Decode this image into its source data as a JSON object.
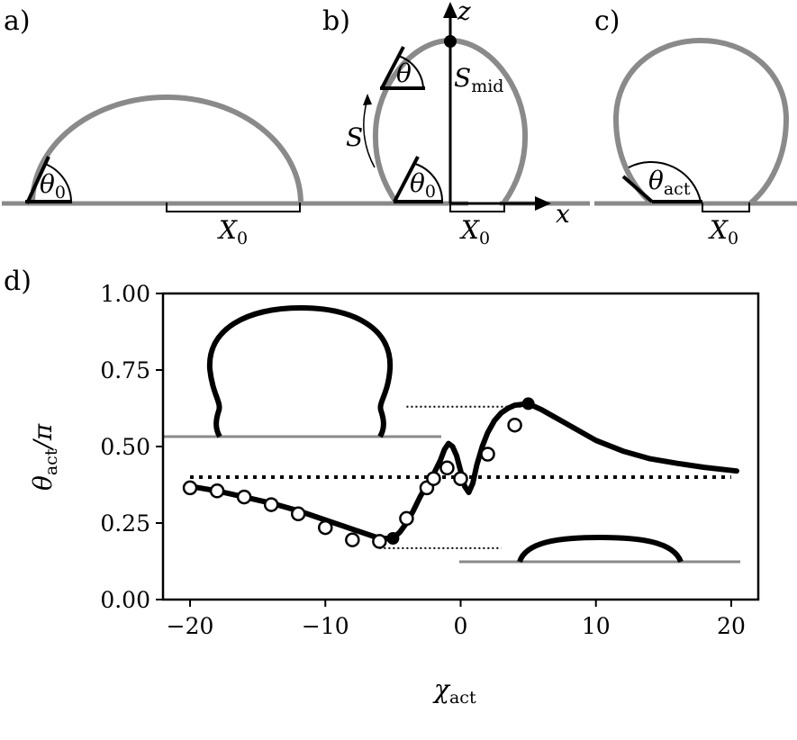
{
  "panels": {
    "a": {
      "label": "a)",
      "theta0": {
        "base": "θ",
        "sub": "0"
      },
      "x0": {
        "base": "X",
        "sub": "0"
      }
    },
    "b": {
      "label": "b)",
      "z": "z",
      "x": "x",
      "s": "S",
      "smid": {
        "base": "S",
        "sub": "mid"
      },
      "theta": "θ",
      "theta0": {
        "base": "θ",
        "sub": "0"
      },
      "x0": {
        "base": "X",
        "sub": "0"
      }
    },
    "c": {
      "label": "c)",
      "theta_act": {
        "base": "θ",
        "sub": "act"
      },
      "x0": {
        "base": "X",
        "sub": "0"
      }
    },
    "d": {
      "label": "d)"
    }
  },
  "chart_data": {
    "type": "line",
    "xlabel": {
      "base": "χ",
      "sub": "act"
    },
    "ylabel": {
      "base": "θ",
      "sub": "act",
      "tail": "/π"
    },
    "xlim": [
      -22,
      22
    ],
    "ylim": [
      0,
      1
    ],
    "xticks": [
      -20,
      -10,
      0,
      10,
      20
    ],
    "xtick_labels": [
      "−20",
      "−10",
      "0",
      "10",
      "20"
    ],
    "yticks": [
      0,
      0.25,
      0.5,
      0.75,
      1
    ],
    "ytick_labels": [
      "0.00",
      "0.25",
      "0.50",
      "0.75",
      "1.00"
    ],
    "grid": false,
    "series": [
      {
        "style": "solid",
        "x": [
          -20,
          -18,
          -16,
          -14,
          -12,
          -10,
          -8,
          -6,
          -5,
          -4.5,
          -4,
          -3.5,
          -3,
          -2.5,
          -2,
          -1.5,
          -1.2,
          -0.9,
          -0.6,
          -0.3,
          0,
          0.3,
          0.6,
          0.9,
          1.2,
          1.6,
          2,
          2.5,
          3,
          3.5,
          4,
          5,
          6,
          7,
          8,
          10,
          12,
          14,
          16,
          18,
          20.4
        ],
        "y": [
          0.37,
          0.355,
          0.335,
          0.315,
          0.29,
          0.26,
          0.23,
          0.2,
          0.2,
          0.22,
          0.25,
          0.29,
          0.335,
          0.375,
          0.41,
          0.455,
          0.49,
          0.51,
          0.5,
          0.47,
          0.42,
          0.37,
          0.35,
          0.38,
          0.44,
          0.5,
          0.545,
          0.585,
          0.61,
          0.625,
          0.635,
          0.64,
          0.62,
          0.595,
          0.57,
          0.52,
          0.485,
          0.46,
          0.445,
          0.432,
          0.42
        ]
      },
      {
        "style": "markers",
        "x": [
          -20,
          -18,
          -16,
          -14,
          -12,
          -10,
          -8,
          -6,
          -4,
          -2.5,
          -2,
          -1,
          0,
          2,
          4
        ],
        "y": [
          0.365,
          0.355,
          0.335,
          0.31,
          0.28,
          0.235,
          0.195,
          0.19,
          0.265,
          0.365,
          0.395,
          0.43,
          0.395,
          0.475,
          0.57
        ]
      }
    ],
    "reference_lines": [
      {
        "style": "dotted",
        "x": [
          -20,
          20
        ],
        "y": 0.4
      },
      {
        "style": "dotted",
        "x": [
          -4,
          5
        ],
        "y": 0.63
      },
      {
        "style": "dotted",
        "x": [
          -6,
          3
        ],
        "y": 0.168
      }
    ],
    "highlighted_points": [
      {
        "x": -5,
        "y": 0.2
      },
      {
        "x": 5,
        "y": 0.64
      }
    ]
  }
}
